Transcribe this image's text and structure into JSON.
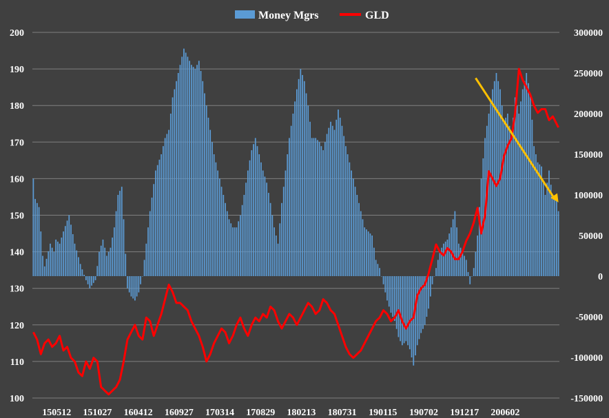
{
  "chart_data": {
    "type": "bar+line",
    "title": "",
    "legend": {
      "placement": "top-center",
      "entries": [
        "Money Mgrs",
        "GLD"
      ]
    },
    "grid": true,
    "colors": {
      "background": "#404040",
      "bars": "#5b9bd5",
      "line": "#ff0000",
      "arrow": "#ffc000",
      "grid": "#808080",
      "text": "#ffffff"
    },
    "left_axis": {
      "min": 100,
      "max": 200,
      "ticks": [
        "100",
        "110",
        "120",
        "130",
        "140",
        "150",
        "160",
        "170",
        "180",
        "190",
        "200"
      ]
    },
    "right_axis": {
      "min": -150000,
      "max": 300000,
      "ticks": [
        "-150000",
        "-100000",
        "-50000",
        "0",
        "50000",
        "100000",
        "150000",
        "200000",
        "250000",
        "300000"
      ]
    },
    "x_axis": {
      "n_points": 280,
      "ticks": [
        "150512",
        "151027",
        "160412",
        "160927",
        "170314",
        "170829",
        "180213",
        "180731",
        "190115",
        "190702",
        "191217",
        "200602"
      ]
    },
    "series": [
      {
        "name": "Money Mgrs",
        "axis": "right",
        "type": "bar",
        "keypoints": [
          [
            0,
            120000
          ],
          [
            1,
            95000
          ],
          [
            3,
            85000
          ],
          [
            5,
            25000
          ],
          [
            6,
            12000
          ],
          [
            9,
            40000
          ],
          [
            11,
            30000
          ],
          [
            12,
            45000
          ],
          [
            14,
            40000
          ],
          [
            16,
            55000
          ],
          [
            19,
            75000
          ],
          [
            22,
            40000
          ],
          [
            25,
            15000
          ],
          [
            28,
            -5000
          ],
          [
            30,
            -15000
          ],
          [
            33,
            -5000
          ],
          [
            35,
            30000
          ],
          [
            37,
            45000
          ],
          [
            39,
            25000
          ],
          [
            41,
            35000
          ],
          [
            43,
            60000
          ],
          [
            45,
            100000
          ],
          [
            47,
            110000
          ],
          [
            48,
            70000
          ],
          [
            50,
            -15000
          ],
          [
            52,
            -25000
          ],
          [
            54,
            -30000
          ],
          [
            56,
            -20000
          ],
          [
            58,
            0
          ],
          [
            60,
            40000
          ],
          [
            62,
            80000
          ],
          [
            65,
            130000
          ],
          [
            68,
            150000
          ],
          [
            70,
            170000
          ],
          [
            72,
            180000
          ],
          [
            74,
            220000
          ],
          [
            76,
            240000
          ],
          [
            78,
            260000
          ],
          [
            80,
            280000
          ],
          [
            82,
            270000
          ],
          [
            84,
            260000
          ],
          [
            86,
            255000
          ],
          [
            88,
            265000
          ],
          [
            90,
            240000
          ],
          [
            92,
            210000
          ],
          [
            94,
            180000
          ],
          [
            96,
            150000
          ],
          [
            98,
            130000
          ],
          [
            100,
            110000
          ],
          [
            102,
            90000
          ],
          [
            104,
            70000
          ],
          [
            106,
            60000
          ],
          [
            108,
            60000
          ],
          [
            110,
            75000
          ],
          [
            112,
            100000
          ],
          [
            114,
            130000
          ],
          [
            116,
            155000
          ],
          [
            118,
            170000
          ],
          [
            120,
            150000
          ],
          [
            122,
            130000
          ],
          [
            124,
            115000
          ],
          [
            126,
            90000
          ],
          [
            128,
            60000
          ],
          [
            130,
            40000
          ],
          [
            132,
            90000
          ],
          [
            134,
            130000
          ],
          [
            136,
            170000
          ],
          [
            138,
            200000
          ],
          [
            140,
            230000
          ],
          [
            142,
            255000
          ],
          [
            144,
            240000
          ],
          [
            146,
            210000
          ],
          [
            148,
            170000
          ],
          [
            150,
            170000
          ],
          [
            152,
            165000
          ],
          [
            154,
            155000
          ],
          [
            156,
            175000
          ],
          [
            158,
            190000
          ],
          [
            160,
            180000
          ],
          [
            162,
            205000
          ],
          [
            164,
            185000
          ],
          [
            166,
            160000
          ],
          [
            168,
            140000
          ],
          [
            170,
            120000
          ],
          [
            172,
            100000
          ],
          [
            174,
            80000
          ],
          [
            176,
            60000
          ],
          [
            178,
            55000
          ],
          [
            180,
            50000
          ],
          [
            182,
            20000
          ],
          [
            184,
            10000
          ],
          [
            186,
            -10000
          ],
          [
            188,
            -30000
          ],
          [
            190,
            -45000
          ],
          [
            192,
            -55000
          ],
          [
            194,
            -75000
          ],
          [
            196,
            -85000
          ],
          [
            198,
            -80000
          ],
          [
            200,
            -90000
          ],
          [
            202,
            -110000
          ],
          [
            204,
            -85000
          ],
          [
            206,
            -70000
          ],
          [
            208,
            -60000
          ],
          [
            210,
            -40000
          ],
          [
            212,
            -10000
          ],
          [
            214,
            10000
          ],
          [
            216,
            30000
          ],
          [
            218,
            40000
          ],
          [
            220,
            45000
          ],
          [
            222,
            60000
          ],
          [
            224,
            80000
          ],
          [
            226,
            40000
          ],
          [
            228,
            30000
          ],
          [
            230,
            20000
          ],
          [
            232,
            -10000
          ],
          [
            234,
            10000
          ],
          [
            236,
            50000
          ],
          [
            238,
            120000
          ],
          [
            240,
            170000
          ],
          [
            242,
            200000
          ],
          [
            244,
            230000
          ],
          [
            246,
            250000
          ],
          [
            248,
            230000
          ],
          [
            250,
            190000
          ],
          [
            252,
            200000
          ],
          [
            254,
            170000
          ],
          [
            256,
            220000
          ],
          [
            258,
            200000
          ],
          [
            260,
            230000
          ],
          [
            262,
            250000
          ],
          [
            264,
            225000
          ],
          [
            266,
            160000
          ],
          [
            268,
            140000
          ],
          [
            270,
            135000
          ],
          [
            272,
            100000
          ],
          [
            274,
            130000
          ],
          [
            276,
            95000
          ],
          [
            278,
            100000
          ],
          [
            279,
            80000
          ]
        ]
      },
      {
        "name": "GLD",
        "axis": "left",
        "type": "line",
        "keypoints": [
          [
            0,
            118
          ],
          [
            2,
            116
          ],
          [
            4,
            112
          ],
          [
            6,
            115
          ],
          [
            8,
            116
          ],
          [
            10,
            114
          ],
          [
            12,
            115
          ],
          [
            14,
            117
          ],
          [
            16,
            113
          ],
          [
            18,
            114
          ],
          [
            20,
            111
          ],
          [
            22,
            110
          ],
          [
            24,
            107
          ],
          [
            26,
            106
          ],
          [
            28,
            110
          ],
          [
            30,
            108
          ],
          [
            32,
            111
          ],
          [
            34,
            110
          ],
          [
            36,
            103
          ],
          [
            38,
            102
          ],
          [
            40,
            101
          ],
          [
            42,
            102
          ],
          [
            44,
            103
          ],
          [
            46,
            105
          ],
          [
            48,
            110
          ],
          [
            50,
            116
          ],
          [
            52,
            118
          ],
          [
            54,
            120
          ],
          [
            56,
            117
          ],
          [
            58,
            116
          ],
          [
            60,
            122
          ],
          [
            62,
            121
          ],
          [
            64,
            117
          ],
          [
            66,
            120
          ],
          [
            68,
            123
          ],
          [
            70,
            127
          ],
          [
            72,
            131
          ],
          [
            74,
            129
          ],
          [
            76,
            126
          ],
          [
            78,
            126
          ],
          [
            80,
            125
          ],
          [
            82,
            124
          ],
          [
            84,
            121
          ],
          [
            86,
            119
          ],
          [
            88,
            117
          ],
          [
            90,
            114
          ],
          [
            92,
            110
          ],
          [
            94,
            112
          ],
          [
            96,
            115
          ],
          [
            98,
            117
          ],
          [
            100,
            119
          ],
          [
            102,
            118
          ],
          [
            104,
            115
          ],
          [
            106,
            117
          ],
          [
            108,
            120
          ],
          [
            110,
            122
          ],
          [
            112,
            119
          ],
          [
            114,
            117
          ],
          [
            116,
            120
          ],
          [
            118,
            122
          ],
          [
            120,
            121
          ],
          [
            122,
            123
          ],
          [
            124,
            122
          ],
          [
            126,
            125
          ],
          [
            128,
            124
          ],
          [
            130,
            121
          ],
          [
            132,
            119
          ],
          [
            134,
            121
          ],
          [
            136,
            123
          ],
          [
            138,
            122
          ],
          [
            140,
            120
          ],
          [
            142,
            122
          ],
          [
            144,
            124
          ],
          [
            146,
            126
          ],
          [
            148,
            125
          ],
          [
            150,
            123
          ],
          [
            152,
            124
          ],
          [
            154,
            127
          ],
          [
            156,
            126
          ],
          [
            158,
            124
          ],
          [
            160,
            123
          ],
          [
            162,
            120
          ],
          [
            164,
            117
          ],
          [
            166,
            114
          ],
          [
            168,
            112
          ],
          [
            170,
            111
          ],
          [
            172,
            112
          ],
          [
            174,
            113
          ],
          [
            176,
            115
          ],
          [
            178,
            117
          ],
          [
            180,
            119
          ],
          [
            182,
            121
          ],
          [
            184,
            122
          ],
          [
            186,
            124
          ],
          [
            188,
            123
          ],
          [
            190,
            121
          ],
          [
            192,
            122
          ],
          [
            194,
            124
          ],
          [
            196,
            121
          ],
          [
            198,
            119
          ],
          [
            200,
            121
          ],
          [
            202,
            122
          ],
          [
            204,
            128
          ],
          [
            206,
            130
          ],
          [
            208,
            131
          ],
          [
            210,
            134
          ],
          [
            212,
            138
          ],
          [
            214,
            142
          ],
          [
            216,
            140
          ],
          [
            218,
            139
          ],
          [
            220,
            141
          ],
          [
            222,
            140
          ],
          [
            224,
            138
          ],
          [
            226,
            138
          ],
          [
            228,
            140
          ],
          [
            230,
            143
          ],
          [
            232,
            145
          ],
          [
            234,
            148
          ],
          [
            236,
            152
          ],
          [
            238,
            145
          ],
          [
            240,
            150
          ],
          [
            242,
            162
          ],
          [
            244,
            160
          ],
          [
            246,
            158
          ],
          [
            248,
            160
          ],
          [
            250,
            166
          ],
          [
            252,
            169
          ],
          [
            254,
            171
          ],
          [
            256,
            178
          ],
          [
            258,
            190
          ],
          [
            260,
            187
          ],
          [
            262,
            185
          ],
          [
            264,
            183
          ],
          [
            266,
            180
          ],
          [
            268,
            178
          ],
          [
            270,
            179
          ],
          [
            272,
            179
          ],
          [
            274,
            176
          ],
          [
            276,
            177
          ],
          [
            278,
            175
          ],
          [
            279,
            174
          ]
        ]
      }
    ]
  }
}
